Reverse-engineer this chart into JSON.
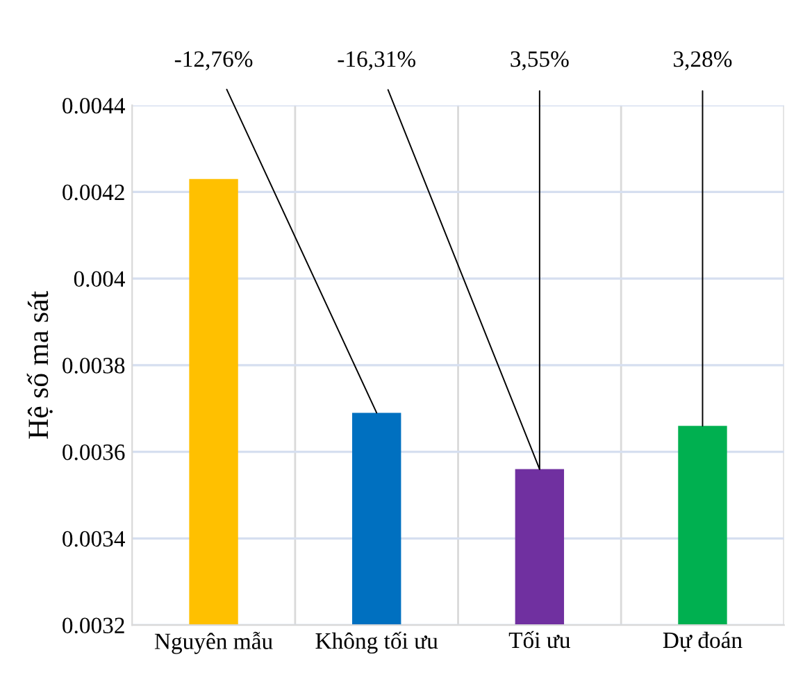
{
  "chart_data": {
    "type": "bar",
    "ylabel": "Hệ số ma sát",
    "categories": [
      "Nguyên mẫu",
      "Không tối ưu",
      "Tối ưu",
      "Dự đoán"
    ],
    "values": [
      0.00423,
      0.00369,
      0.00356,
      0.00366
    ],
    "colors": [
      "#ffc000",
      "#0070c0",
      "#7030a0",
      "#00b050"
    ],
    "ylim": [
      0.0032,
      0.0044
    ],
    "yticks": [
      0.0032,
      0.0034,
      0.0036,
      0.0038,
      0.004,
      0.0042,
      0.0044
    ],
    "grid": true,
    "annotations": [
      {
        "text": "-12,76%",
        "x": "Không tối ưu",
        "y": 0.00369
      },
      {
        "text": "-16,31%",
        "x": "Tối ưu",
        "y": 0.00356
      },
      {
        "text": "3,55%",
        "x": "Tối ưu",
        "y": 0.00356
      },
      {
        "text": "3,28%",
        "x": "Dự đoán",
        "y": 0.00366
      }
    ]
  }
}
